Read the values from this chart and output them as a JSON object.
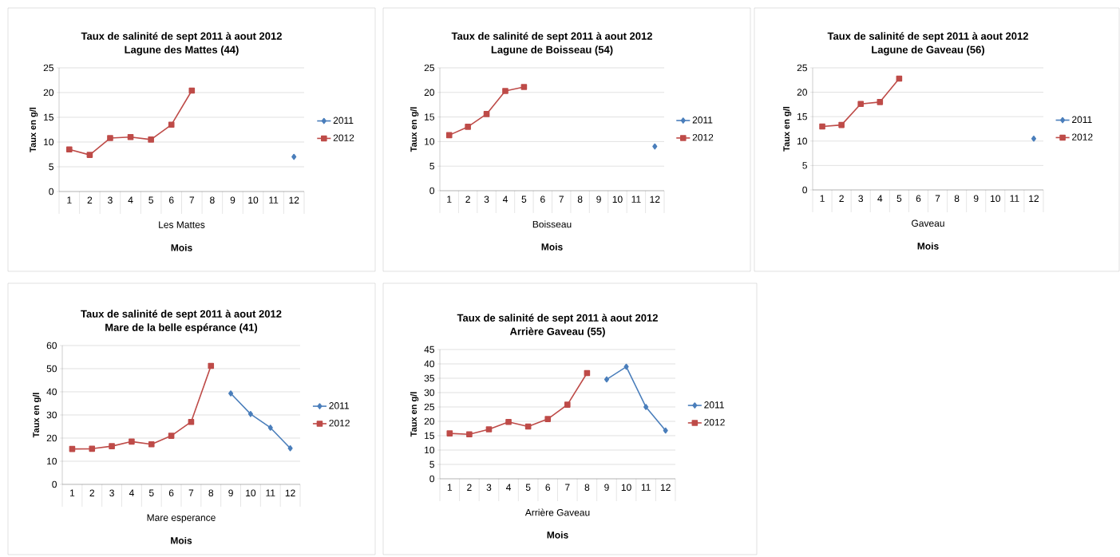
{
  "chart_data": [
    {
      "type": "line",
      "title": "Taux de salinité de sept 2011 à aout 2012",
      "subtitle": "Lagune des  Mattes (44)",
      "xlabel": "Mois",
      "ylabel": "Taux en g/l",
      "annotations": [
        "Les Mattes"
      ],
      "categories": [
        "1",
        "2",
        "3",
        "4",
        "5",
        "6",
        "7",
        "8",
        "9",
        "10",
        "11",
        "12"
      ],
      "ylim": [
        0,
        25
      ],
      "yticks": [
        0,
        5,
        10,
        15,
        20,
        25
      ],
      "grid": "y",
      "legend": "right",
      "series": [
        {
          "name": "2011",
          "color": "#4a7ebb",
          "marker": "diamond",
          "values": [
            null,
            null,
            null,
            null,
            null,
            null,
            null,
            null,
            null,
            null,
            null,
            7
          ]
        },
        {
          "name": "2012",
          "color": "#be4b48",
          "marker": "square",
          "values": [
            8.5,
            7.4,
            10.8,
            11,
            10.5,
            13.5,
            20.4,
            null,
            null,
            null,
            null,
            null
          ]
        }
      ]
    },
    {
      "type": "line",
      "title": "Taux de salinité de sept 2011 à aout 2012",
      "subtitle": "Lagune de Boisseau (54)",
      "xlabel": "Mois",
      "ylabel": "Taux en g/l",
      "annotations": [
        "Boisseau"
      ],
      "categories": [
        "1",
        "2",
        "3",
        "4",
        "5",
        "6",
        "7",
        "8",
        "9",
        "10",
        "11",
        "12"
      ],
      "ylim": [
        0,
        25
      ],
      "yticks": [
        0,
        5,
        10,
        15,
        20,
        25
      ],
      "grid": "y",
      "legend": "right",
      "series": [
        {
          "name": "2011",
          "color": "#4a7ebb",
          "marker": "diamond",
          "values": [
            null,
            null,
            null,
            null,
            null,
            null,
            null,
            null,
            null,
            null,
            null,
            9
          ]
        },
        {
          "name": "2012",
          "color": "#be4b48",
          "marker": "square",
          "values": [
            11.3,
            13,
            15.6,
            20.3,
            21.1,
            null,
            null,
            null,
            null,
            null,
            null,
            null
          ]
        }
      ]
    },
    {
      "type": "line",
      "title": "Taux de salinité de sept 2011 à aout 2012",
      "subtitle": "Lagune de Gaveau (56)",
      "xlabel": "Mois",
      "ylabel": "Taux en g/l",
      "annotations": [
        "Gaveau"
      ],
      "categories": [
        "1",
        "2",
        "3",
        "4",
        "5",
        "6",
        "7",
        "8",
        "9",
        "10",
        "11",
        "12"
      ],
      "ylim": [
        0,
        25
      ],
      "yticks": [
        0,
        5,
        10,
        15,
        20,
        25
      ],
      "grid": "y",
      "legend": "right",
      "series": [
        {
          "name": "2011",
          "color": "#4a7ebb",
          "marker": "diamond",
          "values": [
            null,
            null,
            null,
            null,
            null,
            null,
            null,
            null,
            null,
            null,
            null,
            10.5
          ]
        },
        {
          "name": "2012",
          "color": "#be4b48",
          "marker": "square",
          "values": [
            13,
            13.3,
            17.6,
            18,
            22.8,
            null,
            null,
            null,
            null,
            null,
            null,
            null
          ]
        }
      ]
    },
    {
      "type": "line",
      "title": "Taux de salinité de sept 2011 à aout 2012",
      "subtitle": "Mare de la belle espérance (41)",
      "xlabel": "Mois",
      "ylabel": "Taux en g/l",
      "annotations": [
        "Mare esperance"
      ],
      "categories": [
        "1",
        "2",
        "3",
        "4",
        "5",
        "6",
        "7",
        "8",
        "9",
        "10",
        "11",
        "12"
      ],
      "ylim": [
        0,
        60
      ],
      "yticks": [
        0,
        10,
        20,
        30,
        40,
        50,
        60
      ],
      "grid": "y",
      "legend": "right",
      "series": [
        {
          "name": "2011",
          "color": "#4a7ebb",
          "marker": "diamond",
          "values": [
            null,
            null,
            null,
            null,
            null,
            null,
            null,
            null,
            39.3,
            30.4,
            24.5,
            15.6
          ]
        },
        {
          "name": "2012",
          "color": "#be4b48",
          "marker": "square",
          "values": [
            15.3,
            15.4,
            16.5,
            18.5,
            17.3,
            21,
            27,
            51.2,
            null,
            null,
            null,
            null
          ]
        }
      ]
    },
    {
      "type": "line",
      "title": "Taux de salinité de sept 2011 à aout 2012",
      "subtitle": "Arrière Gaveau (55)",
      "xlabel": "Mois",
      "ylabel": "Taux en g/l",
      "annotations": [
        "Arrière Gaveau"
      ],
      "categories": [
        "1",
        "2",
        "3",
        "4",
        "5",
        "6",
        "7",
        "8",
        "9",
        "10",
        "11",
        "12"
      ],
      "ylim": [
        0,
        45
      ],
      "yticks": [
        0,
        5,
        10,
        15,
        20,
        25,
        30,
        35,
        40,
        45
      ],
      "grid": "y",
      "legend": "right",
      "series": [
        {
          "name": "2011",
          "color": "#4a7ebb",
          "marker": "diamond",
          "values": [
            null,
            null,
            null,
            null,
            null,
            null,
            null,
            null,
            34.6,
            39,
            25,
            16.8
          ]
        },
        {
          "name": "2012",
          "color": "#be4b48",
          "marker": "square",
          "values": [
            15.8,
            15.5,
            17.2,
            19.8,
            18.2,
            20.8,
            25.8,
            36.8,
            null,
            null,
            null,
            null
          ]
        }
      ]
    }
  ]
}
